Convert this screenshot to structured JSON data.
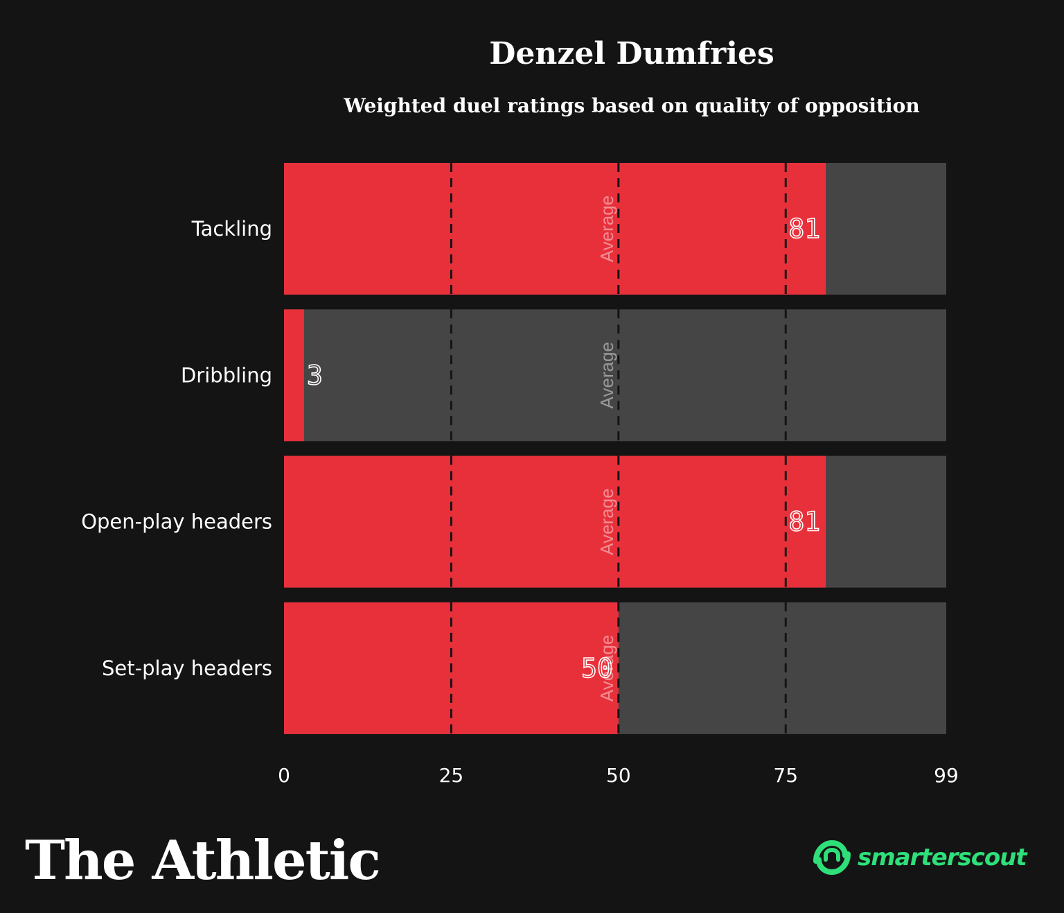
{
  "chart_data": {
    "type": "bar",
    "orientation": "horizontal",
    "title": "Denzel Dumfries",
    "subtitle": "Weighted duel ratings based on quality of opposition",
    "categories": [
      "Tackling",
      "Dribbling",
      "Open-play headers",
      "Set-play headers"
    ],
    "values": [
      81,
      3,
      81,
      50
    ],
    "xlim": [
      0,
      99
    ],
    "xticks": [
      0,
      25,
      50,
      75,
      99
    ],
    "reference_lines": [
      25,
      50,
      75
    ],
    "average_value": 50,
    "average_label": "Average",
    "colors": {
      "value": "#e8303b",
      "remainder": "#454545",
      "background": "#141414"
    }
  },
  "branding": {
    "publisher": "The Athletic",
    "source_prefix": "smarter",
    "source_suffix": "scout"
  }
}
